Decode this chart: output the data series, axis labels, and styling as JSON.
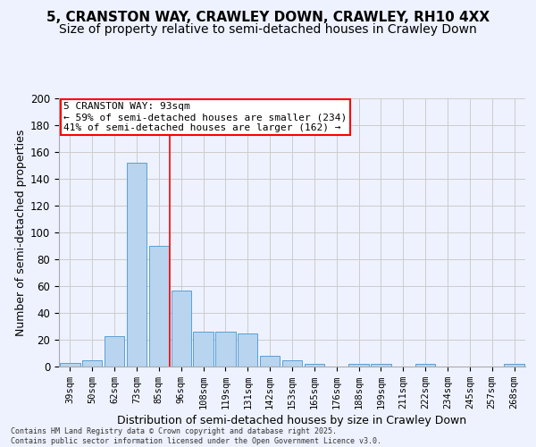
{
  "title": "5, CRANSTON WAY, CRAWLEY DOWN, CRAWLEY, RH10 4XX",
  "subtitle": "Size of property relative to semi-detached houses in Crawley Down",
  "xlabel": "Distribution of semi-detached houses by size in Crawley Down",
  "ylabel": "Number of semi-detached properties",
  "footnote": "Contains HM Land Registry data © Crown copyright and database right 2025.\nContains public sector information licensed under the Open Government Licence v3.0.",
  "categories": [
    "39sqm",
    "50sqm",
    "62sqm",
    "73sqm",
    "85sqm",
    "96sqm",
    "108sqm",
    "119sqm",
    "131sqm",
    "142sqm",
    "153sqm",
    "165sqm",
    "176sqm",
    "188sqm",
    "199sqm",
    "211sqm",
    "222sqm",
    "234sqm",
    "245sqm",
    "257sqm",
    "268sqm"
  ],
  "values": [
    3,
    5,
    23,
    152,
    90,
    57,
    26,
    26,
    25,
    8,
    5,
    2,
    0,
    2,
    2,
    0,
    2,
    0,
    0,
    0,
    2
  ],
  "bar_color": "#b8d4ee",
  "bar_edge_color": "#5a9fd4",
  "pct_smaller": 59,
  "n_smaller": 234,
  "pct_larger": 41,
  "n_larger": 162,
  "vline_color": "red",
  "vline_x": 4.5,
  "ylim": [
    0,
    200
  ],
  "yticks": [
    0,
    20,
    40,
    60,
    80,
    100,
    120,
    140,
    160,
    180,
    200
  ],
  "grid_color": "#cccccc",
  "bg_color": "#eef2ff",
  "title_fontsize": 11,
  "subtitle_fontsize": 10,
  "axis_label_fontsize": 9,
  "tick_fontsize": 7.5,
  "annot_fontsize": 8,
  "footnote_fontsize": 6
}
